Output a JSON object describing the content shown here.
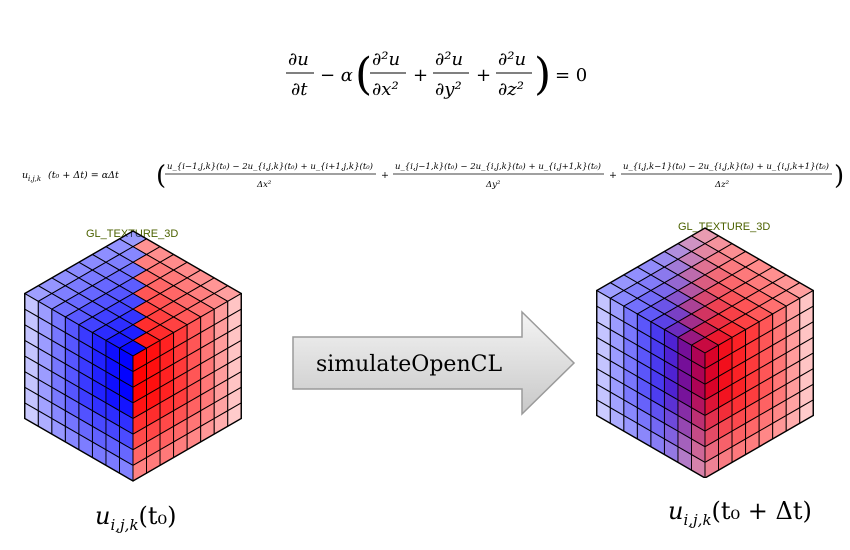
{
  "equation_main": {
    "du_num": "∂u",
    "du_den": "∂t",
    "minus_alpha": "− α",
    "t1_num": "∂²u",
    "t1_den": "∂x²",
    "t2_num": "∂²u",
    "t2_den": "∂y²",
    "t3_num": "∂²u",
    "t3_den": "∂z²",
    "plus": "+",
    "eq_zero": "= 0"
  },
  "equation_discrete": {
    "lhs": "u",
    "lhs_sub": "i,j,k",
    "lhs_arg": "(t₀ + Δt) = αΔt",
    "f1_num": "u_{i−1,j,k}(t₀) − 2u_{i,j,k}(t₀) + u_{i+1,j,k}(t₀)",
    "f1_den": "Δx²",
    "f2_num": "u_{i,j−1,k}(t₀) − 2u_{i,j,k}(t₀) + u_{i,j+1,k}(t₀)",
    "f2_den": "Δy²",
    "f3_num": "u_{i,j,k−1}(t₀) − 2u_{i,j,k}(t₀) + u_{i,j,k+1}(t₀)",
    "f3_den": "Δz²"
  },
  "left_cube": {
    "texture_label": "GL_TEXTURE_3D",
    "caption_main": "u",
    "caption_sub": "i,j,k",
    "caption_arg": "(t₀)"
  },
  "right_cube": {
    "texture_label": "GL_TEXTURE_3D",
    "caption_main": "u",
    "caption_sub": "i,j,k",
    "caption_arg": "(t₀ + Δt)"
  },
  "arrow": {
    "label": "simulateOpenCL"
  },
  "colors": {
    "hot": "#ff0000",
    "cold": "#0000ff",
    "grid": "#000000",
    "texture_label": "#4c6200",
    "arrow_fill_top": "#f4f4f4",
    "arrow_fill_bottom": "#c8c8c8"
  }
}
